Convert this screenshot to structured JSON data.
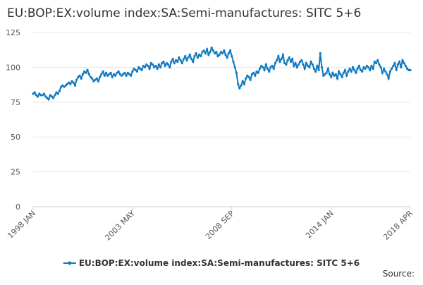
{
  "chart_data": {
    "type": "line",
    "title": "EU:BOP:EX:volume index:SA:Semi-manufactures: SITC 5+6",
    "source": "Source:",
    "categories": [
      "1998 JAN",
      null,
      null,
      null,
      null,
      null,
      null,
      null,
      null,
      null,
      null,
      null,
      null,
      null,
      null,
      null,
      null,
      null,
      null,
      null,
      null,
      null,
      null,
      null,
      null,
      null,
      null,
      null,
      null,
      null,
      null,
      null,
      null,
      null,
      null,
      null,
      null,
      null,
      null,
      null,
      null,
      null,
      null,
      null,
      null,
      null,
      null,
      null,
      null,
      null,
      null,
      null,
      null,
      null,
      null,
      null,
      null,
      null,
      null,
      null,
      null,
      null,
      null,
      null,
      "2003 MAY",
      null,
      null,
      null,
      null,
      null,
      null,
      null,
      null,
      null,
      null,
      null,
      null,
      null,
      null,
      null,
      null,
      null,
      null,
      null,
      null,
      null,
      null,
      null,
      null,
      null,
      null,
      null,
      null,
      null,
      null,
      null,
      null,
      null,
      null,
      null,
      null,
      null,
      null,
      null,
      null,
      null,
      null,
      null,
      null,
      null,
      null,
      null,
      null,
      null,
      null,
      null,
      null,
      null,
      null,
      null,
      null,
      null,
      null,
      null,
      null,
      null,
      null,
      null,
      "2008 SEP",
      null,
      null,
      null,
      null,
      null,
      null,
      null,
      null,
      null,
      null,
      null,
      null,
      null,
      null,
      null,
      null,
      null,
      null,
      null,
      null,
      null,
      null,
      null,
      null,
      null,
      null,
      null,
      null,
      null,
      null,
      null,
      null,
      null,
      null,
      null,
      null,
      null,
      null,
      null,
      null,
      null,
      null,
      null,
      null,
      null,
      null,
      null,
      null,
      null,
      null,
      null,
      null,
      null,
      null,
      null,
      null,
      null,
      null,
      null,
      null,
      null,
      null,
      null,
      "2014 JAN",
      null,
      null,
      null,
      null,
      null,
      null,
      null,
      null,
      null,
      null,
      null,
      null,
      null,
      null,
      null,
      null,
      null,
      null,
      null,
      null,
      null,
      null,
      null,
      null,
      null,
      null,
      null,
      null,
      null,
      null,
      null,
      null,
      null,
      null,
      null,
      null,
      null,
      null,
      null,
      null,
      null,
      null,
      null,
      null,
      null,
      null,
      null,
      null,
      null,
      null,
      "2018 APR"
    ],
    "series": [
      {
        "name": "EU:BOP:EX:volume index:SA:Semi-manufactures: SITC 5+6",
        "color": "#0f7ac0",
        "values": [
          81,
          82,
          80,
          79,
          81,
          80,
          80,
          81,
          79,
          78,
          77,
          80,
          79,
          78,
          80,
          82,
          81,
          83,
          86,
          87,
          86,
          87,
          88,
          89,
          88,
          90,
          89,
          87,
          91,
          93,
          94,
          92,
          95,
          97,
          96,
          98,
          95,
          93,
          92,
          90,
          91,
          92,
          90,
          93,
          95,
          97,
          94,
          96,
          94,
          95,
          96,
          93,
          95,
          94,
          96,
          97,
          95,
          94,
          95,
          96,
          94,
          96,
          95,
          94,
          97,
          99,
          98,
          97,
          100,
          99,
          98,
          101,
          100,
          102,
          101,
          99,
          103,
          102,
          100,
          101,
          99,
          102,
          100,
          103,
          104,
          101,
          103,
          102,
          100,
          104,
          106,
          103,
          105,
          104,
          107,
          105,
          103,
          106,
          108,
          105,
          107,
          109,
          106,
          104,
          108,
          110,
          107,
          109,
          108,
          111,
          112,
          110,
          113,
          109,
          111,
          114,
          112,
          110,
          111,
          108,
          109,
          111,
          110,
          112,
          109,
          107,
          110,
          112,
          108,
          104,
          100,
          96,
          88,
          85,
          87,
          90,
          88,
          92,
          94,
          93,
          91,
          95,
          96,
          94,
          97,
          96,
          99,
          101,
          100,
          98,
          102,
          99,
          97,
          100,
          101,
          99,
          103,
          105,
          108,
          104,
          106,
          109,
          103,
          102,
          105,
          107,
          104,
          106,
          101,
          103,
          100,
          102,
          104,
          105,
          102,
          99,
          103,
          101,
          100,
          104,
          102,
          99,
          97,
          101,
          98,
          110,
          100,
          94,
          95,
          96,
          99,
          95,
          93,
          96,
          94,
          95,
          92,
          97,
          95,
          93,
          96,
          98,
          94,
          97,
          99,
          97,
          100,
          98,
          96,
          99,
          101,
          98,
          97,
          100,
          99,
          101,
          100,
          98,
          101,
          99,
          104,
          103,
          105,
          102,
          100,
          96,
          99,
          97,
          95,
          92,
          97,
          99,
          101,
          103,
          98,
          102,
          104,
          100,
          105,
          103,
          101,
          99,
          98,
          98
        ]
      }
    ],
    "ylim": [
      0,
      125
    ],
    "yticks": [
      0,
      25,
      50,
      75,
      100,
      125
    ],
    "grid": true
  }
}
